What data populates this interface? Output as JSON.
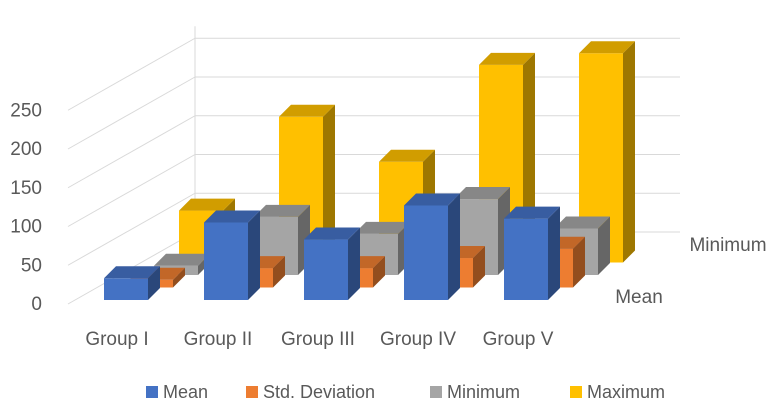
{
  "chart_data": {
    "type": "bar",
    "variant": "3d-column",
    "title": "",
    "xlabel": "",
    "ylabel": "",
    "ylim": [
      0,
      250
    ],
    "y_ticks": [
      "0",
      "50",
      "100",
      "150",
      "200",
      "250"
    ],
    "categories": [
      "Group I",
      "Group II",
      "Group III",
      "Group IV",
      "Group V"
    ],
    "depth_labels": [
      "Minimum",
      "Mean"
    ],
    "series": [
      {
        "name": "Mean",
        "color": "#4472C4",
        "values": [
          28,
          100,
          78,
          122,
          105
        ]
      },
      {
        "name": "Std. Deviation",
        "color": "#ED7D31",
        "values": [
          10,
          25,
          25,
          38,
          50
        ]
      },
      {
        "name": "Minimum",
        "color": "#A5A5A5",
        "values": [
          12,
          75,
          53,
          98,
          60
        ]
      },
      {
        "name": "Maximum",
        "color": "#FFC000",
        "values": [
          67,
          188,
          130,
          255,
          270
        ]
      }
    ],
    "grid": true,
    "legend_position": "bottom"
  }
}
